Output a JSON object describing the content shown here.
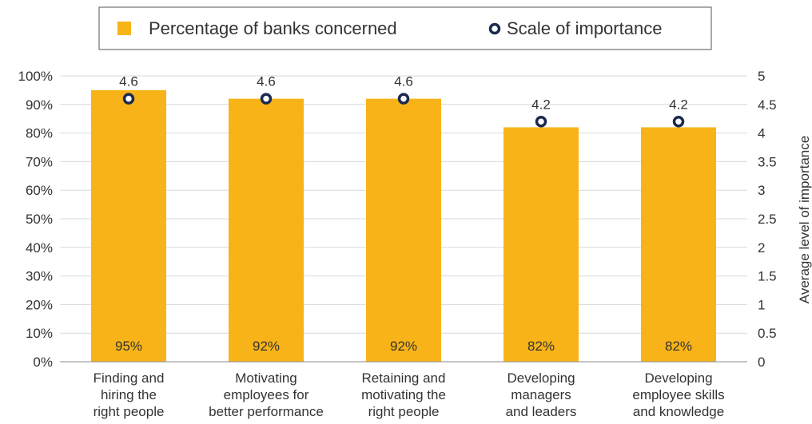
{
  "chart_data": {
    "type": "bar",
    "categories": [
      [
        "Finding and",
        "hiring the",
        "right people"
      ],
      [
        "Motivating",
        "employees for",
        "better performance"
      ],
      [
        "Retaining and",
        "motivating the",
        "right people"
      ],
      [
        "Developing",
        "managers",
        "and leaders"
      ],
      [
        "Developing",
        "employee skills",
        "and knowledge"
      ]
    ],
    "series": [
      {
        "name": "Percentage of banks concerned",
        "kind": "bar",
        "axis": "left",
        "values": [
          95,
          92,
          92,
          82,
          82
        ],
        "labels": [
          "95%",
          "92%",
          "92%",
          "82%",
          "82%"
        ],
        "color": "#F7B318"
      },
      {
        "name": "Scale of importance",
        "kind": "marker",
        "axis": "right",
        "values": [
          4.6,
          4.6,
          4.6,
          4.2,
          4.2
        ],
        "labels": [
          "4.6",
          "4.6",
          "4.6",
          "4.2",
          "4.2"
        ],
        "color": "#1B2A4E"
      }
    ],
    "y_left": {
      "ylim": [
        0,
        100
      ],
      "ticks": [
        "0%",
        "10%",
        "20%",
        "30%",
        "40%",
        "50%",
        "60%",
        "70%",
        "80%",
        "90%",
        "100%"
      ]
    },
    "y_right": {
      "ylim": [
        0,
        5
      ],
      "label": "Average level of importance",
      "ticks": [
        "0",
        "0.5",
        "1",
        "1.5",
        "2",
        "2.5",
        "3",
        "3.5",
        "4",
        "4.5",
        "5"
      ]
    },
    "grid": true,
    "legend_position": "top"
  }
}
